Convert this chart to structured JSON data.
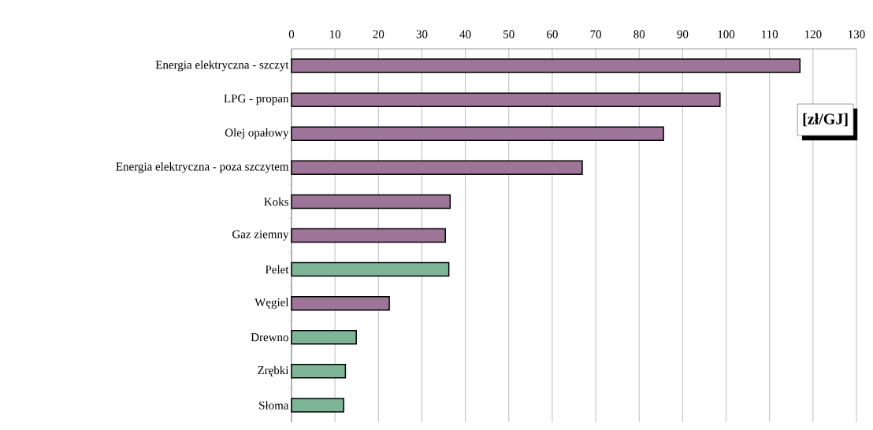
{
  "chart_data": {
    "type": "bar",
    "orientation": "horizontal",
    "categories": [
      "Energia elektryczna - szczyt",
      "LPG - propan",
      "Olej opałowy",
      "Energia elektryczna - poza szczytem",
      "Koks",
      "Gaz ziemny",
      "Pelet",
      "Węgiel",
      "Drewno",
      "Zrębki",
      "Słoma"
    ],
    "values": [
      117,
      98.6,
      85.6,
      66.9,
      36.5,
      35.4,
      36.2,
      22.5,
      14.9,
      12.4,
      12.0
    ],
    "colors": [
      "#9c7599",
      "#9c7599",
      "#9c7599",
      "#9c7599",
      "#9c7599",
      "#9c7599",
      "#7db596",
      "#9c7599",
      "#7db596",
      "#7db596",
      "#7db596"
    ],
    "xlim": [
      0,
      130
    ],
    "xticks": [
      0,
      10,
      20,
      30,
      40,
      50,
      60,
      70,
      80,
      90,
      100,
      110,
      120,
      130
    ],
    "grid": "x",
    "annotations": [
      "[zł/GJ]"
    ]
  }
}
